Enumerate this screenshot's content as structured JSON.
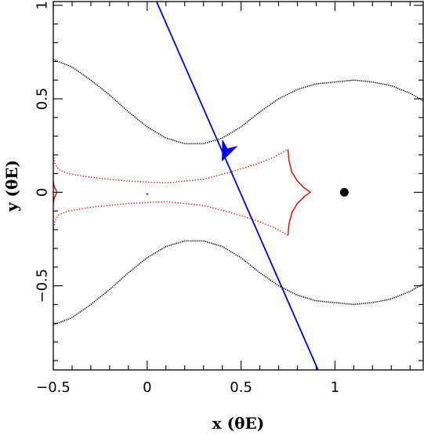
{
  "chart_data": {
    "type": "line",
    "title": "",
    "xlabel": "x (θE)",
    "ylabel": "y (θE)",
    "xlim": [
      -0.5,
      1.47
    ],
    "ylim": [
      -0.95,
      1.02
    ],
    "grid": false,
    "ticks": {
      "x_major": [
        -0.5,
        0,
        0.5,
        1
      ],
      "x_labels": [
        "−0.5",
        "0",
        "0.5",
        "1"
      ],
      "y_major": [
        -0.5,
        0,
        0.5,
        1
      ],
      "y_labels": [
        "−0.5",
        "0",
        "0.5",
        "1"
      ],
      "minor_step": 0.1
    },
    "critical_curves": {
      "color": "#000000",
      "upper": [
        [
          -0.5,
          0.71
        ],
        [
          -0.4,
          0.67
        ],
        [
          -0.3,
          0.6
        ],
        [
          -0.2,
          0.52
        ],
        [
          -0.1,
          0.43
        ],
        [
          0,
          0.35
        ],
        [
          0.1,
          0.29
        ],
        [
          0.2,
          0.26
        ],
        [
          0.3,
          0.26
        ],
        [
          0.4,
          0.29
        ],
        [
          0.5,
          0.35
        ],
        [
          0.6,
          0.43
        ],
        [
          0.7,
          0.5
        ],
        [
          0.8,
          0.55
        ],
        [
          0.9,
          0.58
        ],
        [
          1.0,
          0.59
        ],
        [
          1.1,
          0.6
        ],
        [
          1.2,
          0.59
        ],
        [
          1.3,
          0.57
        ],
        [
          1.4,
          0.53
        ],
        [
          1.47,
          0.49
        ]
      ],
      "lower": [
        [
          -0.5,
          -0.71
        ],
        [
          -0.4,
          -0.67
        ],
        [
          -0.3,
          -0.6
        ],
        [
          -0.2,
          -0.52
        ],
        [
          -0.1,
          -0.43
        ],
        [
          0,
          -0.35
        ],
        [
          0.1,
          -0.29
        ],
        [
          0.2,
          -0.26
        ],
        [
          0.3,
          -0.26
        ],
        [
          0.4,
          -0.29
        ],
        [
          0.5,
          -0.35
        ],
        [
          0.6,
          -0.43
        ],
        [
          0.7,
          -0.5
        ],
        [
          0.8,
          -0.55
        ],
        [
          0.9,
          -0.58
        ],
        [
          1.0,
          -0.59
        ],
        [
          1.1,
          -0.6
        ],
        [
          1.2,
          -0.59
        ],
        [
          1.3,
          -0.57
        ],
        [
          1.4,
          -0.53
        ],
        [
          1.47,
          -0.49
        ]
      ]
    },
    "caustic": {
      "color": "#dd0000",
      "segments": [
        [
          [
            -0.5,
            0.2
          ],
          [
            -0.49,
            0.15
          ],
          [
            -0.47,
            0.12
          ],
          [
            -0.42,
            0.1
          ],
          [
            -0.3,
            0.08
          ],
          [
            -0.1,
            0.06
          ],
          [
            0.1,
            0.05
          ],
          [
            0.3,
            0.07
          ],
          [
            0.45,
            0.11
          ],
          [
            0.58,
            0.15
          ],
          [
            0.68,
            0.19
          ],
          [
            0.75,
            0.23
          ]
        ],
        [
          [
            0.75,
            0.23
          ],
          [
            0.755,
            0.17
          ],
          [
            0.77,
            0.11
          ],
          [
            0.8,
            0.06
          ],
          [
            0.84,
            0.02
          ],
          [
            0.87,
            0.0
          ]
        ],
        [
          [
            0.87,
            0.0
          ],
          [
            0.84,
            -0.02
          ],
          [
            0.8,
            -0.06
          ],
          [
            0.77,
            -0.11
          ],
          [
            0.755,
            -0.17
          ],
          [
            0.75,
            -0.23
          ]
        ],
        [
          [
            0.75,
            -0.23
          ],
          [
            0.68,
            -0.19
          ],
          [
            0.58,
            -0.15
          ],
          [
            0.45,
            -0.11
          ],
          [
            0.3,
            -0.07
          ],
          [
            0.1,
            -0.05
          ],
          [
            -0.1,
            -0.06
          ],
          [
            -0.3,
            -0.08
          ],
          [
            -0.42,
            -0.1
          ],
          [
            -0.47,
            -0.12
          ],
          [
            -0.49,
            -0.15
          ],
          [
            -0.5,
            -0.2
          ]
        ],
        [
          [
            -0.5,
            0.06
          ],
          [
            -0.495,
            0.03
          ],
          [
            -0.48,
            0.0
          ],
          [
            -0.495,
            -0.03
          ],
          [
            -0.5,
            -0.06
          ]
        ]
      ]
    },
    "source_trajectory": {
      "color": "#0000cc",
      "points": [
        [
          0.05,
          1.02
        ],
        [
          0.91,
          -0.95
        ]
      ]
    },
    "trajectory_arrow": {
      "color": "#0000ff",
      "tip": [
        0.4,
        0.17
      ],
      "tail": [
        0.43,
        0.24
      ]
    },
    "lens_marker": {
      "color": "#000000",
      "point": [
        1.05,
        0.0
      ]
    },
    "small_point": {
      "color": "#dd0000",
      "point": [
        0.0,
        -0.01
      ]
    }
  }
}
